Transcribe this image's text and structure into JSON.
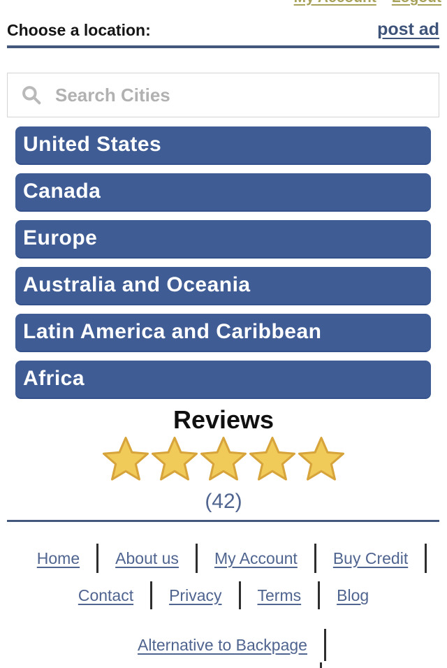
{
  "top_nav": {
    "links": [
      {
        "label": "My Account"
      },
      {
        "label": "Logout"
      }
    ]
  },
  "header": {
    "title": "Choose a location:",
    "post_ad_label": "post ad"
  },
  "search": {
    "placeholder": "Search Cities"
  },
  "locations": [
    "United States",
    "Canada",
    "Europe",
    "Australia and Oceania",
    "Latin America and Caribbean",
    "Africa"
  ],
  "reviews": {
    "title": "Reviews",
    "star_count": 5,
    "count_label": "(42)"
  },
  "footer": {
    "rows": [
      {
        "links": [
          "Home",
          "About us",
          "My Account",
          "Buy Credit"
        ],
        "trailing_separator": true
      },
      {
        "links": [
          "Contact",
          "Privacy",
          "Terms",
          "Blog"
        ],
        "trailing_separator": false
      },
      {
        "links": [
          "Alternative to Backpage"
        ],
        "trailing_separator": true
      }
    ]
  },
  "colors": {
    "button_blue": "#3f5c95",
    "rule_navy": "#44587e",
    "link_slate": "#4f648f",
    "top_link_khaki": "#a7a15a",
    "star_fill": "#f1cb59",
    "star_stroke": "#d7a43c"
  }
}
